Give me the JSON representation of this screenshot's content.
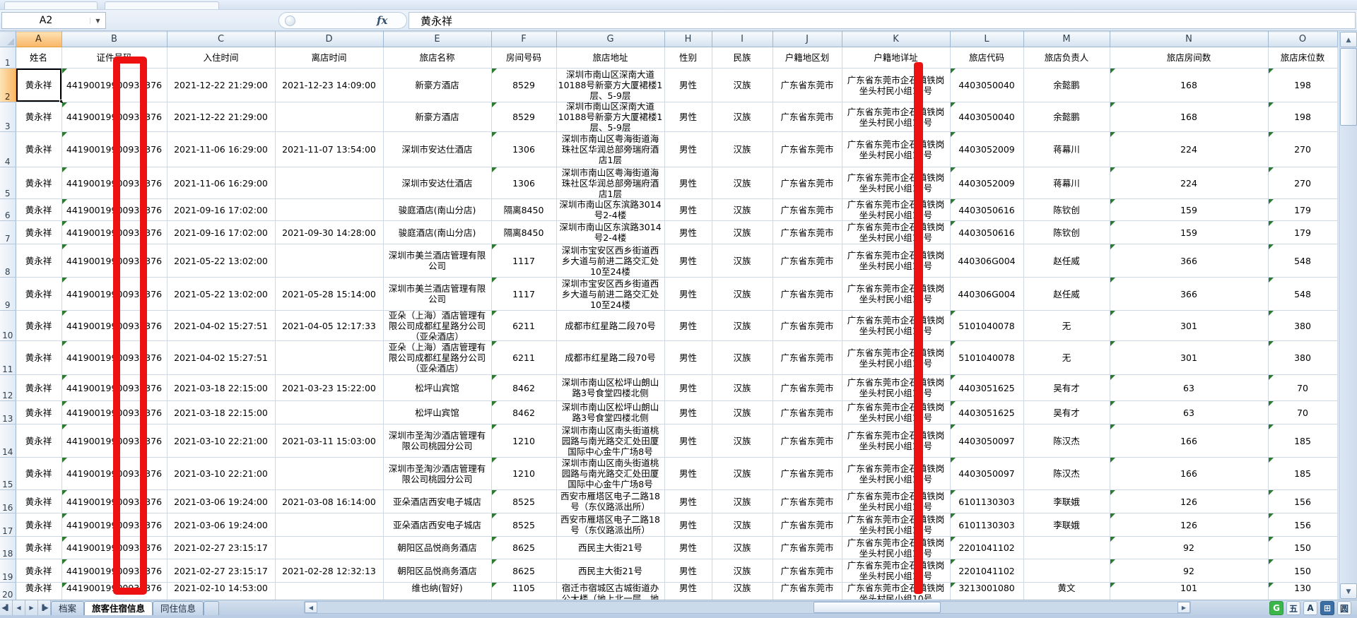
{
  "formula_bar": {
    "name_box": "A2",
    "fx_label": "fx",
    "formula_value": "黄永祥"
  },
  "column_letters": [
    "A",
    "B",
    "C",
    "D",
    "E",
    "F",
    "G",
    "H",
    "I",
    "J",
    "K",
    "L",
    "M",
    "N",
    "O"
  ],
  "header_row": [
    "姓名",
    "证件号码",
    "入住时间",
    "离店时间",
    "旅店名称",
    "房间号码",
    "旅店地址",
    "性别",
    "民族",
    "户籍地区划",
    "户籍地详址",
    "旅店代码",
    "旅店负责人",
    "旅店房间数",
    "旅店床位数"
  ],
  "rows": [
    {
      "num": 2,
      "name": "黄永祥",
      "id": "44190019900930376",
      "checkin": "2021-12-22 21:29:00",
      "checkout": "2021-12-23 14:09:00",
      "hotel": "新豪方酒店",
      "room": "8529",
      "address": "深圳市南山区深南大道\n10188号新豪方大厦裙楼1\n层、5-9层",
      "gender": "男性",
      "ethnic": "汉族",
      "region": "广东省东莞市",
      "detail": "广东省东莞市企石镇铁岗\n坐头村民小组10号",
      "code": "4403050040",
      "manager": "余懿鹏",
      "rooms": "168",
      "beds": "198"
    },
    {
      "num": 3,
      "name": "黄永祥",
      "id": "44190019900930376",
      "checkin": "2021-12-22 21:29:00",
      "checkout": "",
      "hotel": "新豪方酒店",
      "room": "8529",
      "address": "深圳市南山区深南大道\n10188号新豪方大厦裙楼1\n层、5-9层",
      "gender": "男性",
      "ethnic": "汉族",
      "region": "广东省东莞市",
      "detail": "广东省东莞市企石镇铁岗\n坐头村民小组10号",
      "code": "4403050040",
      "manager": "余懿鹏",
      "rooms": "168",
      "beds": "198"
    },
    {
      "num": 4,
      "name": "黄永祥",
      "id": "44190019900930376",
      "checkin": "2021-11-06 16:29:00",
      "checkout": "2021-11-07 13:54:00",
      "hotel": "深圳市安达仕酒店",
      "room": "1306",
      "address": "深圳市南山区粤海街道海\n珠社区华润总部旁瑞府酒\n店1层",
      "gender": "男性",
      "ethnic": "汉族",
      "region": "广东省东莞市",
      "detail": "广东省东莞市企石镇铁岗\n坐头村民小组10号",
      "code": "4403052009",
      "manager": "蒋幕川",
      "rooms": "224",
      "beds": "270"
    },
    {
      "num": 5,
      "name": "黄永祥",
      "id": "44190019900930376",
      "checkin": "2021-11-06 16:29:00",
      "checkout": "",
      "hotel": "深圳市安达仕酒店",
      "room": "1306",
      "address": "深圳市南山区粤海街道海\n珠社区华润总部旁瑞府酒\n店1层",
      "gender": "男性",
      "ethnic": "汉族",
      "region": "广东省东莞市",
      "detail": "广东省东莞市企石镇铁岗\n坐头村民小组10号",
      "code": "4403052009",
      "manager": "蒋幕川",
      "rooms": "224",
      "beds": "270"
    },
    {
      "num": 6,
      "name": "黄永祥",
      "id": "44190019900930376",
      "checkin": "2021-09-16 17:02:00",
      "checkout": "",
      "hotel": "骏庭酒店(南山分店)",
      "room": "隔离8450",
      "address": "深圳市南山区东滨路3014\n号2-4楼",
      "gender": "男性",
      "ethnic": "汉族",
      "region": "广东省东莞市",
      "detail": "广东省东莞市企石镇铁岗\n坐头村民小组10号",
      "code": "4403050616",
      "manager": "陈钦创",
      "rooms": "159",
      "beds": "179"
    },
    {
      "num": 7,
      "name": "黄永祥",
      "id": "44190019900930376",
      "checkin": "2021-09-16 17:02:00",
      "checkout": "2021-09-30 14:28:00",
      "hotel": "骏庭酒店(南山分店)",
      "room": "隔离8450",
      "address": "深圳市南山区东滨路3014\n号2-4楼",
      "gender": "男性",
      "ethnic": "汉族",
      "region": "广东省东莞市",
      "detail": "广东省东莞市企石镇铁岗\n坐头村民小组10号",
      "code": "4403050616",
      "manager": "陈钦创",
      "rooms": "159",
      "beds": "179"
    },
    {
      "num": 8,
      "name": "黄永祥",
      "id": "44190019900930376",
      "checkin": "2021-05-22 13:02:00",
      "checkout": "",
      "hotel": "深圳市美兰酒店管理有限\n公司",
      "room": "1117",
      "address": "深圳市宝安区西乡街道西\n乡大道与前进二路交汇处\n10至24楼",
      "gender": "男性",
      "ethnic": "汉族",
      "region": "广东省东莞市",
      "detail": "广东省东莞市企石镇铁岗\n坐头村民小组10号",
      "code": "440306G004",
      "manager": "赵任威",
      "rooms": "366",
      "beds": "548"
    },
    {
      "num": 9,
      "name": "黄永祥",
      "id": "44190019900930376",
      "checkin": "2021-05-22 13:02:00",
      "checkout": "2021-05-28 15:14:00",
      "hotel": "深圳市美兰酒店管理有限\n公司",
      "room": "1117",
      "address": "深圳市宝安区西乡街道西\n乡大道与前进二路交汇处\n10至24楼",
      "gender": "男性",
      "ethnic": "汉族",
      "region": "广东省东莞市",
      "detail": "广东省东莞市企石镇铁岗\n坐头村民小组10号",
      "code": "440306G004",
      "manager": "赵任威",
      "rooms": "366",
      "beds": "548"
    },
    {
      "num": 10,
      "name": "黄永祥",
      "id": "44190019900930376",
      "checkin": "2021-04-02 15:27:51",
      "checkout": "2021-04-05 12:17:33",
      "hotel": "亚朵（上海）酒店管理有\n限公司成都红星路分公司\n（亚朵酒店）",
      "room": "6211",
      "address": "成都市红星路二段70号",
      "gender": "男性",
      "ethnic": "汉族",
      "region": "广东省东莞市",
      "detail": "广东省东莞市企石镇铁岗\n坐头村民小组10号",
      "code": "5101040078",
      "manager": "无",
      "rooms": "301",
      "beds": "380"
    },
    {
      "num": 11,
      "name": "黄永祥",
      "id": "44190019900930376",
      "checkin": "2021-04-02 15:27:51",
      "checkout": "",
      "hotel": "亚朵（上海）酒店管理有\n限公司成都红星路分公司\n（亚朵酒店）",
      "room": "6211",
      "address": "成都市红星路二段70号",
      "gender": "男性",
      "ethnic": "汉族",
      "region": "广东省东莞市",
      "detail": "广东省东莞市企石镇铁岗\n坐头村民小组10号",
      "code": "5101040078",
      "manager": "无",
      "rooms": "301",
      "beds": "380"
    },
    {
      "num": 12,
      "name": "黄永祥",
      "id": "44190019900930376",
      "checkin": "2021-03-18 22:15:00",
      "checkout": "2021-03-23 15:22:00",
      "hotel": "松坪山宾馆",
      "room": "8462",
      "address": "深圳市南山区松坪山朗山\n路3号食堂四楼北侧",
      "gender": "男性",
      "ethnic": "汉族",
      "region": "广东省东莞市",
      "detail": "广东省东莞市企石镇铁岗\n坐头村民小组10号",
      "code": "4403051625",
      "manager": "吴有才",
      "rooms": "63",
      "beds": "70"
    },
    {
      "num": 13,
      "name": "黄永祥",
      "id": "44190019900930376",
      "checkin": "2021-03-18 22:15:00",
      "checkout": "",
      "hotel": "松坪山宾馆",
      "room": "8462",
      "address": "深圳市南山区松坪山朗山\n路3号食堂四楼北侧",
      "gender": "男性",
      "ethnic": "汉族",
      "region": "广东省东莞市",
      "detail": "广东省东莞市企石镇铁岗\n坐头村民小组10号",
      "code": "4403051625",
      "manager": "吴有才",
      "rooms": "63",
      "beds": "70"
    },
    {
      "num": 14,
      "name": "黄永祥",
      "id": "44190019900930376",
      "checkin": "2021-03-10 22:21:00",
      "checkout": "2021-03-11 15:03:00",
      "hotel": "深圳市圣淘沙酒店管理有\n限公司桃园分公司",
      "room": "1210",
      "address": "深圳市南山区南头街道桃\n园路与南光路交汇处田厦\n国际中心金牛广场8号",
      "gender": "男性",
      "ethnic": "汉族",
      "region": "广东省东莞市",
      "detail": "广东省东莞市企石镇铁岗\n坐头村民小组10号",
      "code": "4403050097",
      "manager": "陈汉杰",
      "rooms": "166",
      "beds": "185"
    },
    {
      "num": 15,
      "name": "黄永祥",
      "id": "44190019900930376",
      "checkin": "2021-03-10 22:21:00",
      "checkout": "",
      "hotel": "深圳市圣淘沙酒店管理有\n限公司桃园分公司",
      "room": "1210",
      "address": "深圳市南山区南头街道桃\n园路与南光路交汇处田厦\n国际中心金牛广场8号",
      "gender": "男性",
      "ethnic": "汉族",
      "region": "广东省东莞市",
      "detail": "广东省东莞市企石镇铁岗\n坐头村民小组10号",
      "code": "4403050097",
      "manager": "陈汉杰",
      "rooms": "166",
      "beds": "185"
    },
    {
      "num": 16,
      "name": "黄永祥",
      "id": "44190019900930376",
      "checkin": "2021-03-06 19:24:00",
      "checkout": "2021-03-08 16:14:00",
      "hotel": "亚朵酒店西安电子城店",
      "room": "8525",
      "address": "西安市雁塔区电子二路18\n号（东仪路派出所）",
      "gender": "男性",
      "ethnic": "汉族",
      "region": "广东省东莞市",
      "detail": "广东省东莞市企石镇铁岗\n坐头村民小组10号",
      "code": "6101130303",
      "manager": "李联娥",
      "rooms": "126",
      "beds": "156"
    },
    {
      "num": 17,
      "name": "黄永祥",
      "id": "44190019900930376",
      "checkin": "2021-03-06 19:24:00",
      "checkout": "",
      "hotel": "亚朵酒店西安电子城店",
      "room": "8525",
      "address": "西安市雁塔区电子二路18\n号（东仪路派出所）",
      "gender": "男性",
      "ethnic": "汉族",
      "region": "广东省东莞市",
      "detail": "广东省东莞市企石镇铁岗\n坐头村民小组10号",
      "code": "6101130303",
      "manager": "李联娥",
      "rooms": "126",
      "beds": "156"
    },
    {
      "num": 18,
      "name": "黄永祥",
      "id": "44190019900930376",
      "checkin": "2021-02-27 23:15:17",
      "checkout": "",
      "hotel": "朝阳区品悦商务酒店",
      "room": "8625",
      "address": "西民主大街21号",
      "gender": "男性",
      "ethnic": "汉族",
      "region": "广东省东莞市",
      "detail": "广东省东莞市企石镇铁岗\n坐头村民小组10号",
      "code": "2201041102",
      "manager": "",
      "rooms": "92",
      "beds": "150"
    },
    {
      "num": 19,
      "name": "黄永祥",
      "id": "44190019900930376",
      "checkin": "2021-02-27 23:15:17",
      "checkout": "2021-02-28 12:32:13",
      "hotel": "朝阳区品悦商务酒店",
      "room": "8625",
      "address": "西民主大街21号",
      "gender": "男性",
      "ethnic": "汉族",
      "region": "广东省东莞市",
      "detail": "广东省东莞市企石镇铁岗\n坐头村民小组10号",
      "code": "2201041102",
      "manager": "",
      "rooms": "92",
      "beds": "150"
    },
    {
      "num": 20,
      "name": "黄永祥",
      "id": "44190019900930376",
      "checkin": "2021-02-10 14:53:00",
      "checkout": "",
      "hotel": "维也纳(智好)",
      "room": "1105",
      "address": "宿迁市宿城区古城街道办\n公大楼（地上北一层、地",
      "gender": "男性",
      "ethnic": "汉族",
      "region": "广东省东莞市",
      "detail": "广东省东莞市企石镇铁岗\n坐头村民小组10号",
      "code": "3213001080",
      "manager": "黄文",
      "rooms": "101",
      "beds": "130"
    }
  ],
  "sheet_tabs": [
    {
      "label": "档案",
      "active": false
    },
    {
      "label": "旅客住宿信息",
      "active": true
    },
    {
      "label": "同住信息",
      "active": false
    }
  ],
  "tab_nav_icons": [
    "◀▌",
    "◀",
    "▶",
    "▐▶"
  ],
  "scroll_icons": {
    "up": "▲",
    "down": "▼",
    "left": "◀",
    "right": "▶"
  },
  "annotations": {
    "color": "#ee1111"
  },
  "tray_icons": [
    {
      "glyph": "G",
      "style": "green"
    },
    {
      "glyph": "五",
      "style": "plain"
    },
    {
      "glyph": "A",
      "style": "plain"
    },
    {
      "glyph": "⊞",
      "style": "blue"
    },
    {
      "glyph": "圆",
      "style": "plain"
    }
  ]
}
